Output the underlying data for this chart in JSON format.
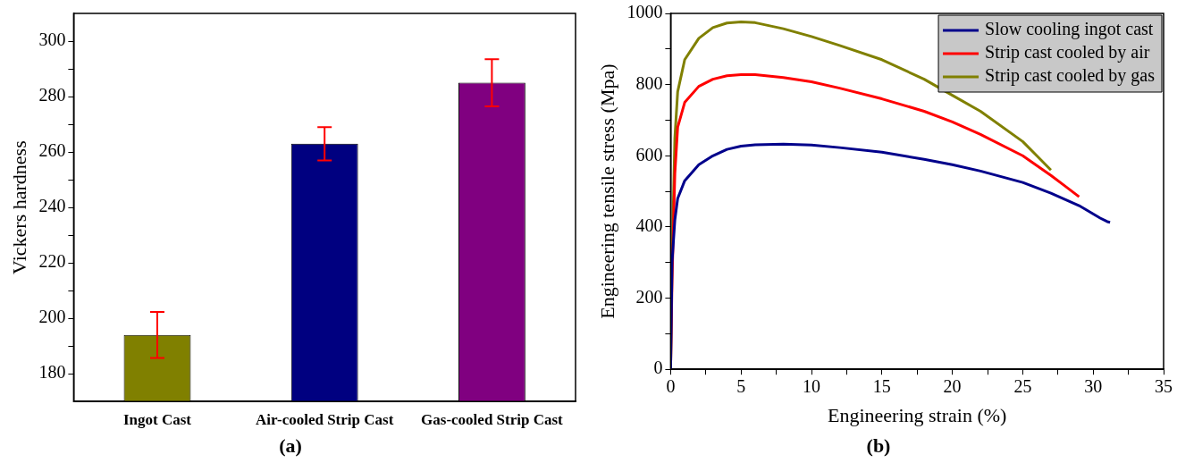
{
  "chart_data": [
    {
      "type": "bar",
      "title": "(a)",
      "ylabel": "Vickers hardness",
      "categories": [
        "Ingot Cast",
        "Air-cooled Strip Cast",
        "Gas-cooled Strip Cast"
      ],
      "values": [
        194,
        263,
        285
      ],
      "colors": [
        "#808000",
        "#000080",
        "#800080"
      ],
      "errors": [
        8.3,
        6,
        8.5
      ],
      "ylim": [
        170,
        310
      ],
      "yticks": [
        180,
        {
          "value": 190,
          "label": null
        },
        200,
        {
          "value": 210,
          "label": null
        },
        220,
        {
          "value": 230,
          "label": null
        },
        240,
        {
          "value": 250,
          "label": null
        },
        260,
        {
          "value": 270,
          "label": null
        },
        280,
        {
          "value": 290,
          "label": null
        },
        300
      ],
      "grid": false,
      "legend": false
    },
    {
      "type": "line",
      "title": "(b)",
      "xlabel": "Engineering strain (%)",
      "ylabel": "Engineering tensile stress (Mpa)",
      "xlim": [
        0,
        35
      ],
      "xticks": [
        0,
        {
          "value": 2.5,
          "label": null
        },
        5,
        {
          "value": 7.5,
          "label": null
        },
        10,
        {
          "value": 12.5,
          "label": null
        },
        15,
        {
          "value": 17.5,
          "label": null
        },
        20,
        {
          "value": 22.5,
          "label": null
        },
        25,
        {
          "value": 27.5,
          "label": null
        },
        30,
        {
          "value": 32.5,
          "label": null
        },
        35
      ],
      "ylim": [
        0,
        1000
      ],
      "yticks": [
        0,
        {
          "value": 100,
          "label": null
        },
        200,
        {
          "value": 300,
          "label": null
        },
        400,
        {
          "value": 500,
          "label": null
        },
        600,
        {
          "value": 700,
          "label": null
        },
        800,
        {
          "value": 900,
          "label": null
        },
        1000
      ],
      "grid": false,
      "legend": "top right",
      "marker": "none",
      "line_style": "solid",
      "series": [
        {
          "name": "Slow cooling ingot cast",
          "color": "#00008b",
          "x": [
            0,
            0.1,
            0.3,
            0.5,
            1,
            2,
            3,
            4,
            5,
            6,
            8,
            10,
            12,
            15,
            18,
            20,
            22,
            25,
            27,
            29,
            30.5,
            31,
            31.2
          ],
          "values": [
            0,
            300,
            420,
            480,
            530,
            575,
            600,
            618,
            627,
            631,
            633,
            630,
            623,
            610,
            590,
            575,
            557,
            525,
            495,
            460,
            425,
            415,
            413
          ]
        },
        {
          "name": "Strip cast cooled by air",
          "color": "#ff0000",
          "x": [
            0,
            0.1,
            0.3,
            0.5,
            1,
            2,
            3,
            4,
            5,
            6,
            8,
            10,
            12,
            15,
            18,
            20,
            22,
            25,
            27,
            28,
            29
          ],
          "values": [
            0,
            250,
            550,
            680,
            750,
            795,
            815,
            825,
            828,
            828,
            820,
            808,
            790,
            760,
            725,
            695,
            660,
            600,
            545,
            515,
            485
          ]
        },
        {
          "name": "Strip cast cooled by gas",
          "color": "#808000",
          "x": [
            0,
            0.1,
            0.3,
            0.5,
            1,
            2,
            3,
            4,
            5,
            6,
            8,
            10,
            12,
            15,
            18,
            20,
            22,
            25,
            26,
            27
          ],
          "values": [
            0,
            300,
            650,
            780,
            870,
            930,
            960,
            973,
            976,
            974,
            957,
            935,
            910,
            870,
            815,
            770,
            725,
            640,
            600,
            560
          ]
        }
      ]
    }
  ]
}
